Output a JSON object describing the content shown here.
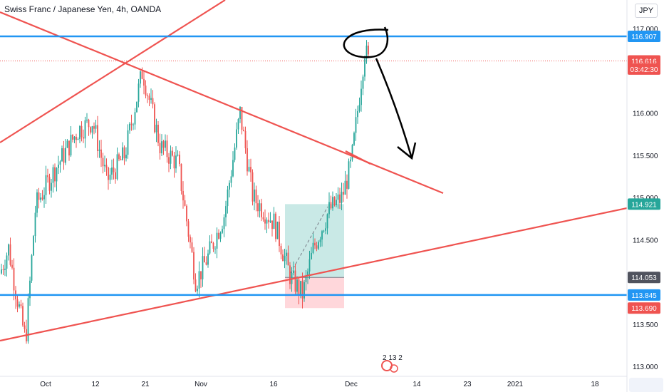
{
  "header": {
    "title": "Swiss Franc / Japanese Yen, 4h, OANDA",
    "currency_button": "JPY"
  },
  "colors": {
    "trend_red": "#ef5350",
    "level_blue": "#2196f3",
    "candle_green": "#26a69a",
    "candle_red": "#ef5350",
    "profit_zone": "#b2dfdb",
    "loss_zone": "#ffcdd2",
    "drawing_black": "#000000"
  },
  "chart_data": {
    "type": "candlestick",
    "instrument": "Swiss Franc / Japanese Yen",
    "interval": "4h",
    "source": "OANDA",
    "ylim": [
      113.0,
      117.0
    ],
    "y_ticks": [
      "117.000",
      "116.000",
      "115.500",
      "115.000",
      "114.500",
      "113.500",
      "113.000"
    ],
    "x_ticks": [
      "Oct",
      "12",
      "21",
      "Nov",
      "16",
      "Dec",
      "14",
      "23",
      "2021",
      "18"
    ],
    "price_labels": [
      {
        "text": "116.907",
        "value": 116.907,
        "kind": "level"
      },
      {
        "text": "116.616",
        "value": 116.616,
        "kind": "last"
      },
      {
        "text": "03:42:30",
        "value": 116.52,
        "kind": "countdown"
      },
      {
        "text": "114.921",
        "value": 114.921,
        "kind": "trend"
      },
      {
        "text": "114.053",
        "value": 114.053,
        "kind": "entry"
      },
      {
        "text": "113.845",
        "value": 113.845,
        "kind": "level"
      },
      {
        "text": "113.690",
        "value": 113.69,
        "kind": "stop"
      }
    ],
    "horizontal_levels": [
      116.907,
      113.845
    ],
    "last_price": 116.616,
    "position": {
      "entry": 114.053,
      "target": 114.921,
      "stop": 113.69
    },
    "events_label": "2 13 2"
  }
}
